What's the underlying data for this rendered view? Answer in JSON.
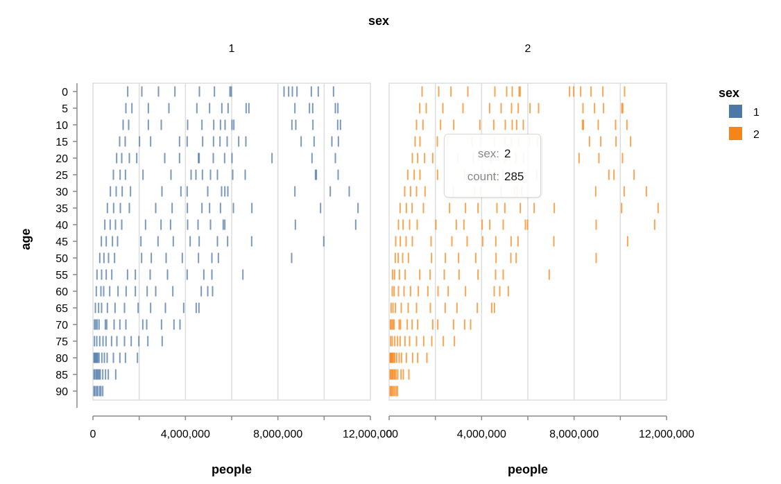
{
  "chart_data": {
    "type": "tick",
    "title": "sex",
    "facet_labels": [
      "1",
      "2"
    ],
    "xlabel": "people",
    "ylabel": "age",
    "xlim": [
      0,
      12000000
    ],
    "x_tick_labels": [
      "0",
      "4,000,000",
      "8,000,000",
      "12,000,000"
    ],
    "x_ticks": [
      0,
      2000000,
      4000000,
      6000000,
      8000000,
      10000000,
      12000000
    ],
    "x_tick_values_labeled": [
      0,
      4000000,
      8000000,
      12000000
    ],
    "ages": [
      0,
      5,
      10,
      15,
      20,
      25,
      30,
      35,
      40,
      45,
      50,
      55,
      60,
      65,
      70,
      75,
      80,
      85,
      90
    ],
    "grid": true,
    "legend": {
      "title": "sex",
      "placement": "right",
      "entries": [
        {
          "label": "1",
          "color": "#4c78a8"
        },
        {
          "label": "2",
          "color": "#f58518"
        }
      ]
    },
    "series": [
      {
        "name": "1",
        "color": "#4c78a8",
        "values_by_age": [
          [
            1460000,
            2070000,
            2790000,
            3500000,
            4560000,
            5210000,
            5880000,
            5940000,
            8220000,
            8420000,
            8580000,
            8780000,
            9400000,
            9700000,
            10360000
          ],
          [
            1380000,
            1640000,
            2350000,
            3240000,
            4450000,
            5000000,
            5530000,
            5800000,
            6580000,
            6700000,
            8690000,
            9320000,
            9460000,
            10440000,
            10550000
          ],
          [
            1260000,
            1500000,
            2350000,
            2910000,
            4050000,
            4670000,
            5180000,
            5470000,
            5670000,
            5970000,
            6050000,
            8560000,
            8730000,
            9470000,
            10540000,
            10660000
          ],
          [
            1110000,
            1350000,
            1970000,
            2450000,
            3700000,
            4030000,
            4700000,
            5170000,
            5450000,
            5760000,
            6260000,
            6570000,
            8960000,
            9520000,
            10290000,
            10570000
          ],
          [
            980000,
            1200000,
            1530000,
            1850000,
            3060000,
            3700000,
            4520000,
            4550000,
            5160000,
            5650000,
            5970000,
            7700000,
            9430000,
            10440000
          ],
          [
            840000,
            1130000,
            1360000,
            2120000,
            3330000,
            4200000,
            4410000,
            4690000,
            5040000,
            5340000,
            6000000,
            6540000,
            9580000,
            9620000,
            10560000
          ],
          [
            710000,
            960000,
            1220000,
            1580000,
            2940000,
            3760000,
            4030000,
            4920000,
            5520000,
            5660000,
            5790000,
            8690000,
            10220000,
            11040000
          ],
          [
            580000,
            850000,
            1140000,
            1530000,
            2670000,
            3380000,
            4040000,
            4670000,
            5000000,
            5470000,
            6030000,
            6830000,
            9800000,
            11420000
          ],
          [
            470000,
            700000,
            930000,
            1200000,
            2230000,
            2900000,
            3310000,
            4050000,
            4500000,
            5040000,
            5590000,
            5660000,
            8710000,
            11320000
          ],
          [
            320000,
            530000,
            800000,
            1020000,
            2030000,
            2770000,
            3430000,
            4160000,
            4550000,
            5340000,
            5780000,
            6820000,
            9940000
          ],
          [
            250000,
            430000,
            630000,
            890000,
            2060000,
            2480000,
            3120000,
            3820000,
            4520000,
            5100000,
            5380000,
            8550000
          ],
          [
            130000,
            330000,
            530000,
            770000,
            1450000,
            1790000,
            2430000,
            3180000,
            4030000,
            4750000,
            5100000,
            6440000
          ],
          [
            100000,
            300000,
            420000,
            680000,
            1040000,
            1390000,
            1790000,
            2300000,
            2670000,
            3410000,
            4640000,
            4920000,
            5130000
          ],
          [
            60000,
            200000,
            330000,
            580000,
            910000,
            1320000,
            1910000,
            2450000,
            3090000,
            3880000,
            4420000,
            4540000
          ],
          [
            20000,
            80000,
            140000,
            220000,
            490000,
            550000,
            870000,
            1120000,
            1380000,
            2110000,
            2280000,
            2920000,
            3460000,
            3720000
          ],
          [
            20000,
            120000,
            250000,
            390000,
            520000,
            760000,
            990000,
            1320000,
            1610000,
            1940000,
            2330000,
            2950000
          ],
          [
            0,
            30000,
            60000,
            100000,
            130000,
            170000,
            220000,
            340000,
            450000,
            570000,
            840000,
            1120000,
            1360000,
            1880000
          ],
          [
            0,
            40000,
            100000,
            140000,
            180000,
            230000,
            270000,
            380000,
            500000,
            620000,
            940000
          ],
          [
            0,
            40000,
            110000,
            160000,
            240000,
            300000,
            380000
          ]
        ]
      },
      {
        "name": "2",
        "color": "#f58518",
        "values_by_age": [
          [
            1380000,
            2100000,
            2630000,
            3360000,
            4530000,
            5040000,
            5280000,
            5580000,
            5620000,
            7760000,
            7940000,
            8240000,
            8690000,
            9200000,
            10140000
          ],
          [
            1280000,
            1560000,
            2280000,
            3150000,
            4300000,
            4800000,
            5250000,
            5540000,
            6050000,
            6420000,
            8340000,
            8840000,
            9230000,
            10020000,
            10060000
          ],
          [
            1140000,
            1420000,
            2180000,
            2750000,
            3880000,
            4480000,
            4980000,
            5280000,
            5470000,
            5760000,
            8320000,
            8360000,
            9000000,
            9750000,
            10240000
          ],
          [
            1080000,
            1290000,
            2040000,
            2480000,
            3540000,
            3900000,
            4510000,
            4970000,
            5250000,
            5550000,
            6030000,
            6370000,
            8620000,
            9110000,
            9770000,
            10400000
          ],
          [
            960000,
            1190000,
            1490000,
            1840000,
            2920000,
            3600000,
            4360000,
            4390000,
            4960000,
            5440000,
            5770000,
            8170000,
            9030000,
            10050000
          ],
          [
            760000,
            1040000,
            1290000,
            2050000,
            3220000,
            4010000,
            4290000,
            4520000,
            4880000,
            5190000,
            5780000,
            6340000,
            9460000,
            9680000,
            10550000
          ],
          [
            630000,
            880000,
            1140000,
            1510000,
            2730000,
            3660000,
            3920000,
            4800000,
            5390000,
            5490000,
            5690000,
            8890000,
            10120000,
            11080000
          ],
          [
            430000,
            700000,
            950000,
            1440000,
            2570000,
            3260000,
            3800000,
            4620000,
            4960000,
            5630000,
            6230000,
            7100000,
            10010000,
            11590000
          ],
          [
            360000,
            560000,
            840000,
            1170000,
            1980000,
            2860000,
            3190000,
            3980000,
            4310000,
            4890000,
            5850000,
            5940000,
            8910000,
            11440000
          ],
          [
            240000,
            440000,
            690000,
            960000,
            1770000,
            2670000,
            3330000,
            4000000,
            4570000,
            5230000,
            5530000,
            7080000,
            10270000
          ],
          [
            220000,
            350000,
            540000,
            790000,
            1790000,
            2390000,
            2960000,
            3700000,
            4580000,
            5220000,
            5450000,
            8910000
          ],
          [
            100000,
            190000,
            400000,
            650000,
            1280000,
            1730000,
            2340000,
            2980000,
            3800000,
            4560000,
            4890000,
            6880000
          ],
          [
            90000,
            170000,
            360000,
            600000,
            880000,
            1220000,
            1630000,
            2070000,
            2510000,
            3260000,
            4500000,
            4740000,
            5110000
          ],
          [
            40000,
            120000,
            230000,
            480000,
            780000,
            1140000,
            1740000,
            2380000,
            2890000,
            3770000,
            4390000,
            4510000
          ],
          [
            10000,
            60000,
            120000,
            170000,
            390000,
            450000,
            740000,
            950000,
            1190000,
            1840000,
            2060000,
            2740000,
            3220000,
            3480000
          ],
          [
            20000,
            90000,
            200000,
            320000,
            430000,
            640000,
            840000,
            1140000,
            1450000,
            1800000,
            2300000,
            2780000
          ],
          [
            0,
            20000,
            50000,
            80000,
            110000,
            150000,
            200000,
            280000,
            390000,
            490000,
            700000,
            970000,
            1190000,
            1590000
          ],
          [
            0,
            30000,
            80000,
            110000,
            160000,
            200000,
            250000,
            330000,
            470000,
            570000,
            810000
          ],
          [
            0,
            30000,
            80000,
            130000,
            190000,
            260000,
            320000
          ]
        ]
      }
    ]
  },
  "tooltip": {
    "sex_key": "sex:",
    "sex_value": "2",
    "count_key": "count:",
    "count_value": "285"
  }
}
